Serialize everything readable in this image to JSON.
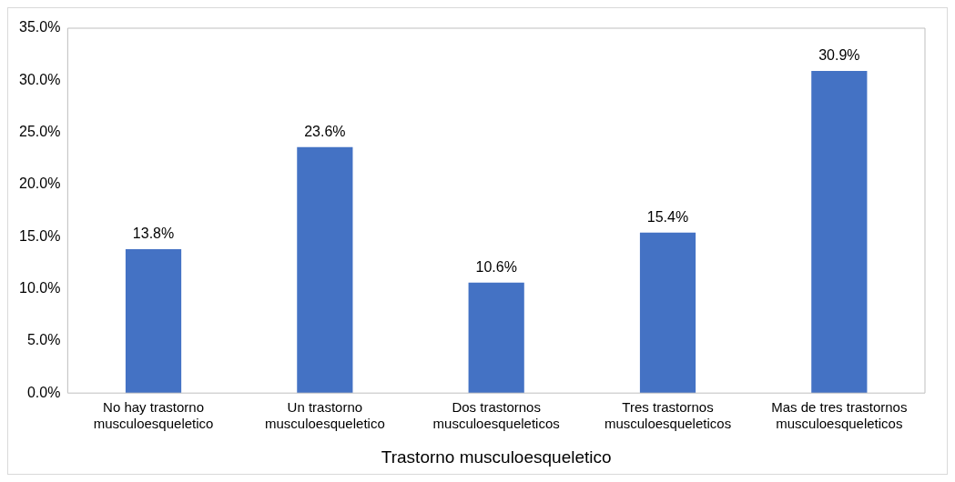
{
  "chart_data": {
    "type": "bar",
    "xlabel": "Trastorno musculoesqueletico",
    "categories": [
      "No hay trastorno musculoesqueletico",
      "Un trastorno musculoesqueletico",
      "Dos trastornos musculoesqueleticos",
      "Tres trastornos musculoesqueleticos",
      "Mas de tres trastornos musculoesqueleticos"
    ],
    "values": [
      13.8,
      23.6,
      10.6,
      15.4,
      30.9
    ],
    "value_labels": [
      "13.8%",
      "23.6%",
      "10.6%",
      "15.4%",
      "30.9%"
    ],
    "color": "#4472c4",
    "ylim": [
      0,
      35
    ],
    "yticks": [
      {
        "value": 0,
        "label": "0.0%"
      },
      {
        "value": 5,
        "label": "5.0%"
      },
      {
        "value": 10,
        "label": "10.0%"
      },
      {
        "value": 15,
        "label": "15.0%"
      },
      {
        "value": 20,
        "label": "20.0%"
      },
      {
        "value": 25,
        "label": "25.0%"
      },
      {
        "value": 30,
        "label": "30.0%"
      },
      {
        "value": 35,
        "label": "35.0%"
      }
    ],
    "grid": false,
    "legend": false
  }
}
